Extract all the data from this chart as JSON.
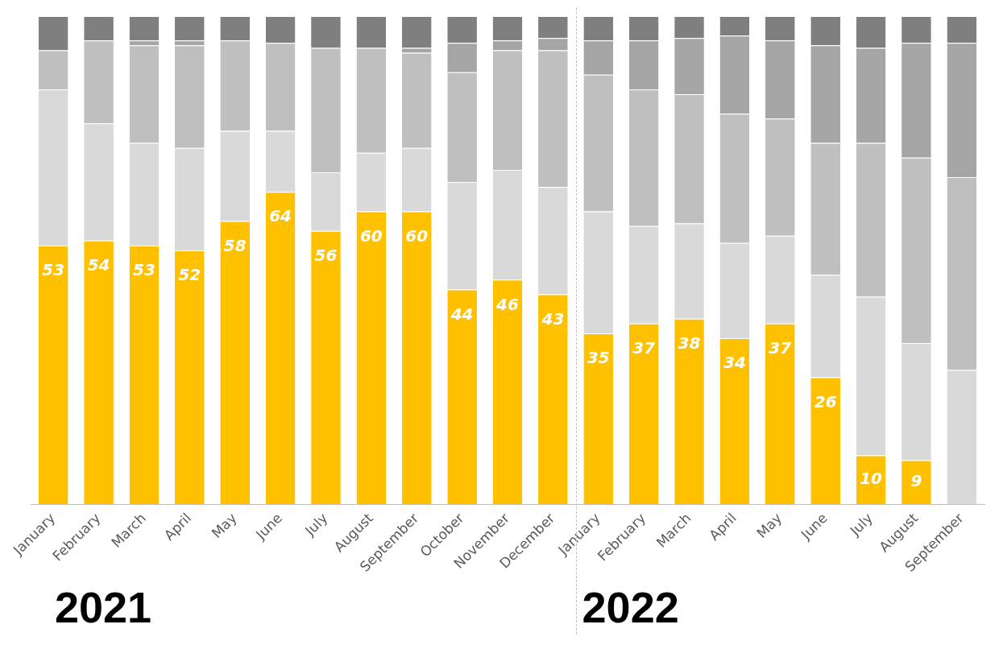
{
  "chart_data": {
    "type": "bar",
    "stacked": true,
    "categories": [
      "January",
      "February",
      "March",
      "April",
      "May",
      "June",
      "July",
      "August",
      "September",
      "October",
      "November",
      "December",
      "January",
      "February",
      "March",
      "April",
      "May",
      "June",
      "July",
      "August",
      "September"
    ],
    "series": [
      {
        "color": "#ffc000",
        "values": [
          53,
          54,
          53,
          52,
          58,
          64,
          56,
          60,
          60,
          44,
          46,
          43,
          35,
          37,
          38,
          34,
          37,
          26,
          10,
          9,
          0
        ],
        "value_labels": [
          "53",
          "54",
          "53",
          "52",
          "58",
          "64",
          "56",
          "60",
          "60",
          "44",
          "46",
          "43",
          "35",
          "37",
          "38",
          "34",
          "37",
          "26",
          "10",
          "9",
          null
        ]
      },
      {
        "color": "#d9d9d9",
        "values": [
          32,
          24,
          21,
          21,
          18.5,
          12.5,
          12,
          12,
          13,
          22,
          22.5,
          22,
          25,
          20,
          19.5,
          19.5,
          18,
          21,
          32.5,
          24,
          27.5
        ]
      },
      {
        "color": "#bfbfbf",
        "values": [
          8,
          17,
          20,
          21,
          18.5,
          18,
          25.5,
          21.5,
          19.5,
          22.5,
          24.5,
          28,
          28,
          28,
          26.5,
          26.5,
          24,
          27,
          31.5,
          38,
          39.5
        ]
      },
      {
        "color": "#a5a5a5",
        "values": [
          0,
          0,
          1,
          1,
          0,
          0,
          0,
          0,
          1,
          6,
          2,
          2.5,
          7,
          10,
          11.5,
          16,
          16,
          20,
          19.5,
          23.5,
          27.5
        ]
      },
      {
        "color": "#7f7f7f",
        "values": [
          7,
          5,
          5,
          5,
          5,
          5.5,
          6.5,
          6.5,
          6.5,
          5.5,
          5,
          4.5,
          5,
          5,
          4.5,
          4,
          5,
          6,
          6.5,
          5.5,
          5.5
        ]
      }
    ],
    "ylim": [
      0,
      100
    ],
    "tick_labels": "x",
    "grid": false,
    "legend": false,
    "annotations": [
      "2021",
      "2022"
    ]
  }
}
